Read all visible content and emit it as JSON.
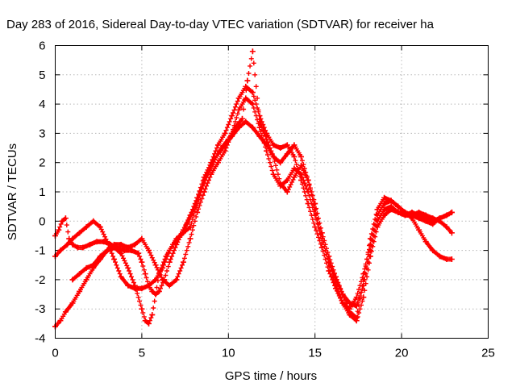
{
  "chart_data": {
    "type": "scatter",
    "title": "Day 283 of 2016, Sidereal Day-to-day VTEC variation (SDTVAR) for receiver ha",
    "xlabel": "GPS time / hours",
    "ylabel": "SDTVAR / TECUs",
    "xlim": [
      0,
      25
    ],
    "ylim": [
      -4,
      6
    ],
    "xticks": [
      "0",
      "5",
      "10",
      "15",
      "20",
      "25"
    ],
    "yticks": [
      "-4",
      "-3",
      "-2",
      "-1",
      "0",
      "1",
      "2",
      "3",
      "4",
      "5",
      "6"
    ],
    "grid": true,
    "marker": "plus",
    "color": "#ff0000",
    "series": [
      {
        "x": [
          0.0,
          0.2,
          0.4,
          0.6,
          0.8,
          1.0,
          1.3,
          1.6,
          2.0,
          2.4,
          2.8,
          3.2,
          3.6,
          4.0,
          4.4,
          4.8,
          5.0,
          5.2,
          5.4,
          5.6,
          5.8,
          6.0,
          6.3,
          6.6,
          7.0,
          7.4,
          7.8,
          8.2,
          8.6,
          9.0,
          9.4,
          9.8,
          10.2,
          10.6,
          11.0,
          11.4,
          11.8,
          12.2,
          12.6,
          13.0,
          13.4,
          13.8,
          14.2,
          14.6,
          15.0,
          15.4,
          15.8,
          16.2,
          16.6,
          17.0,
          17.4,
          17.8,
          18.2,
          18.6,
          19.0,
          19.4,
          19.8,
          20.2,
          20.6,
          21.0,
          21.4,
          21.8,
          22.2,
          22.6,
          22.9
        ],
        "y": [
          -0.5,
          -0.3,
          0.0,
          0.1,
          -0.6,
          -0.8,
          -0.9,
          -0.9,
          -0.8,
          -0.7,
          -0.7,
          -0.8,
          -0.9,
          -1.0,
          -1.0,
          -1.1,
          -1.4,
          -1.8,
          -2.2,
          -2.4,
          -2.5,
          -2.4,
          -2.0,
          -1.4,
          -0.8,
          -0.3,
          0.2,
          0.8,
          1.5,
          2.0,
          2.6,
          3.0,
          3.6,
          4.2,
          4.6,
          4.4,
          3.6,
          3.0,
          2.6,
          2.5,
          2.6,
          2.2,
          1.4,
          0.6,
          -0.2,
          -0.9,
          -1.7,
          -2.3,
          -2.8,
          -3.0,
          -2.6,
          -1.8,
          -0.8,
          0.2,
          0.6,
          0.7,
          0.5,
          0.3,
          0.2,
          0.1,
          0.0,
          -0.1,
          0.1,
          0.2,
          0.3
        ]
      },
      {
        "x": [
          0.0,
          0.3,
          0.6,
          1.0,
          1.4,
          1.8,
          2.2,
          2.6,
          3.0,
          3.4,
          3.8,
          4.2,
          4.6,
          5.0,
          5.2,
          5.4,
          5.6,
          5.8,
          6.0,
          6.4,
          6.8,
          7.2,
          7.6,
          8.0,
          8.4,
          8.8,
          9.2,
          9.6,
          10.0,
          10.4,
          10.8,
          11.1,
          11.4,
          11.8,
          12.2,
          12.6,
          13.0,
          13.4,
          13.8,
          14.2,
          14.6,
          15.0,
          15.4,
          15.8,
          16.2,
          16.6,
          17.0,
          17.4,
          17.8,
          18.2,
          18.6,
          19.0,
          19.4,
          19.8,
          20.2,
          20.6,
          21.0,
          21.4,
          21.8,
          22.2,
          22.6,
          22.9
        ],
        "y": [
          -3.6,
          -3.4,
          -3.1,
          -2.8,
          -2.4,
          -2.0,
          -1.6,
          -1.3,
          -1.0,
          -0.9,
          -1.1,
          -1.6,
          -2.2,
          -3.0,
          -3.4,
          -3.5,
          -3.2,
          -2.5,
          -1.8,
          -1.2,
          -0.8,
          -0.5,
          -0.1,
          0.4,
          1.0,
          1.6,
          2.1,
          2.5,
          2.8,
          3.2,
          3.5,
          4.8,
          5.8,
          3.4,
          2.8,
          2.2,
          1.3,
          1.0,
          1.5,
          1.9,
          1.4,
          0.6,
          -0.4,
          -1.2,
          -1.9,
          -2.5,
          -3.1,
          -3.3,
          -2.0,
          -0.6,
          0.4,
          0.8,
          0.7,
          0.5,
          0.3,
          0.1,
          -0.3,
          -0.7,
          -1.0,
          -1.2,
          -1.3,
          -1.3
        ]
      },
      {
        "x": [
          0.0,
          0.3,
          0.7,
          1.0,
          1.4,
          1.8,
          2.2,
          2.6,
          3.0,
          3.4,
          3.8,
          4.2,
          4.6,
          5.0,
          5.4,
          5.8,
          6.2,
          6.6,
          7.0,
          7.4,
          7.8,
          8.2,
          8.6,
          9.0,
          9.4,
          9.8,
          10.2,
          10.6,
          11.0,
          11.4,
          11.8,
          12.2,
          12.6,
          13.0,
          13.4,
          13.8,
          14.2,
          14.6,
          15.0,
          15.4,
          15.8,
          16.2,
          16.6,
          17.0,
          17.4,
          17.8,
          18.2,
          18.6,
          19.0,
          19.4,
          19.8,
          20.2,
          20.6,
          21.0,
          21.4,
          21.8,
          22.2,
          22.6,
          22.9
        ],
        "y": [
          -1.2,
          -1.0,
          -0.8,
          -0.6,
          -0.4,
          -0.2,
          0.0,
          -0.2,
          -0.7,
          -1.3,
          -1.9,
          -2.2,
          -2.3,
          -2.3,
          -2.2,
          -2.0,
          -1.6,
          -1.0,
          -0.6,
          -0.4,
          -0.2,
          0.6,
          1.4,
          1.9,
          2.3,
          2.6,
          2.9,
          3.2,
          3.4,
          3.2,
          2.9,
          2.6,
          2.2,
          2.0,
          2.3,
          2.6,
          2.2,
          1.4,
          0.4,
          -0.6,
          -1.4,
          -2.0,
          -2.5,
          -2.8,
          -2.9,
          -2.2,
          -1.0,
          0.0,
          0.4,
          0.5,
          0.3,
          0.2,
          0.2,
          0.3,
          0.2,
          0.1,
          0.0,
          -0.2,
          -0.4
        ]
      },
      {
        "x": [
          1.0,
          1.4,
          1.8,
          2.2,
          2.6,
          3.0,
          3.4,
          3.8,
          4.2,
          4.6,
          5.0,
          5.4,
          5.8,
          6.2,
          6.6,
          7.0,
          7.4,
          7.8,
          8.2,
          8.6,
          9.0,
          9.4,
          9.8,
          10.2,
          10.6,
          11.0,
          11.4,
          11.8,
          12.2,
          12.6,
          13.0,
          13.4,
          13.8,
          14.2,
          14.6,
          15.0,
          15.4,
          15.8,
          16.2,
          16.6,
          17.0,
          17.4,
          17.8,
          18.2,
          18.6,
          19.0,
          19.4,
          19.8,
          20.2,
          20.6,
          21.0,
          21.4,
          21.8,
          22.2,
          22.6,
          22.9
        ],
        "y": [
          -2.0,
          -1.8,
          -1.6,
          -1.5,
          -1.2,
          -1.0,
          -0.8,
          -0.8,
          -0.9,
          -0.8,
          -0.6,
          -1.0,
          -1.5,
          -2.0,
          -2.2,
          -2.0,
          -1.4,
          -0.6,
          0.3,
          1.0,
          1.6,
          2.0,
          2.4,
          3.0,
          3.8,
          4.2,
          4.0,
          3.2,
          2.4,
          1.6,
          1.2,
          1.4,
          1.8,
          1.6,
          1.0,
          0.2,
          -0.6,
          -1.4,
          -2.2,
          -2.8,
          -3.2,
          -3.4,
          -2.6,
          -1.2,
          -0.2,
          0.2,
          0.4,
          0.3,
          0.2,
          0.3,
          0.2,
          0.1,
          0.0,
          0.1,
          0.2,
          0.3
        ]
      }
    ]
  }
}
